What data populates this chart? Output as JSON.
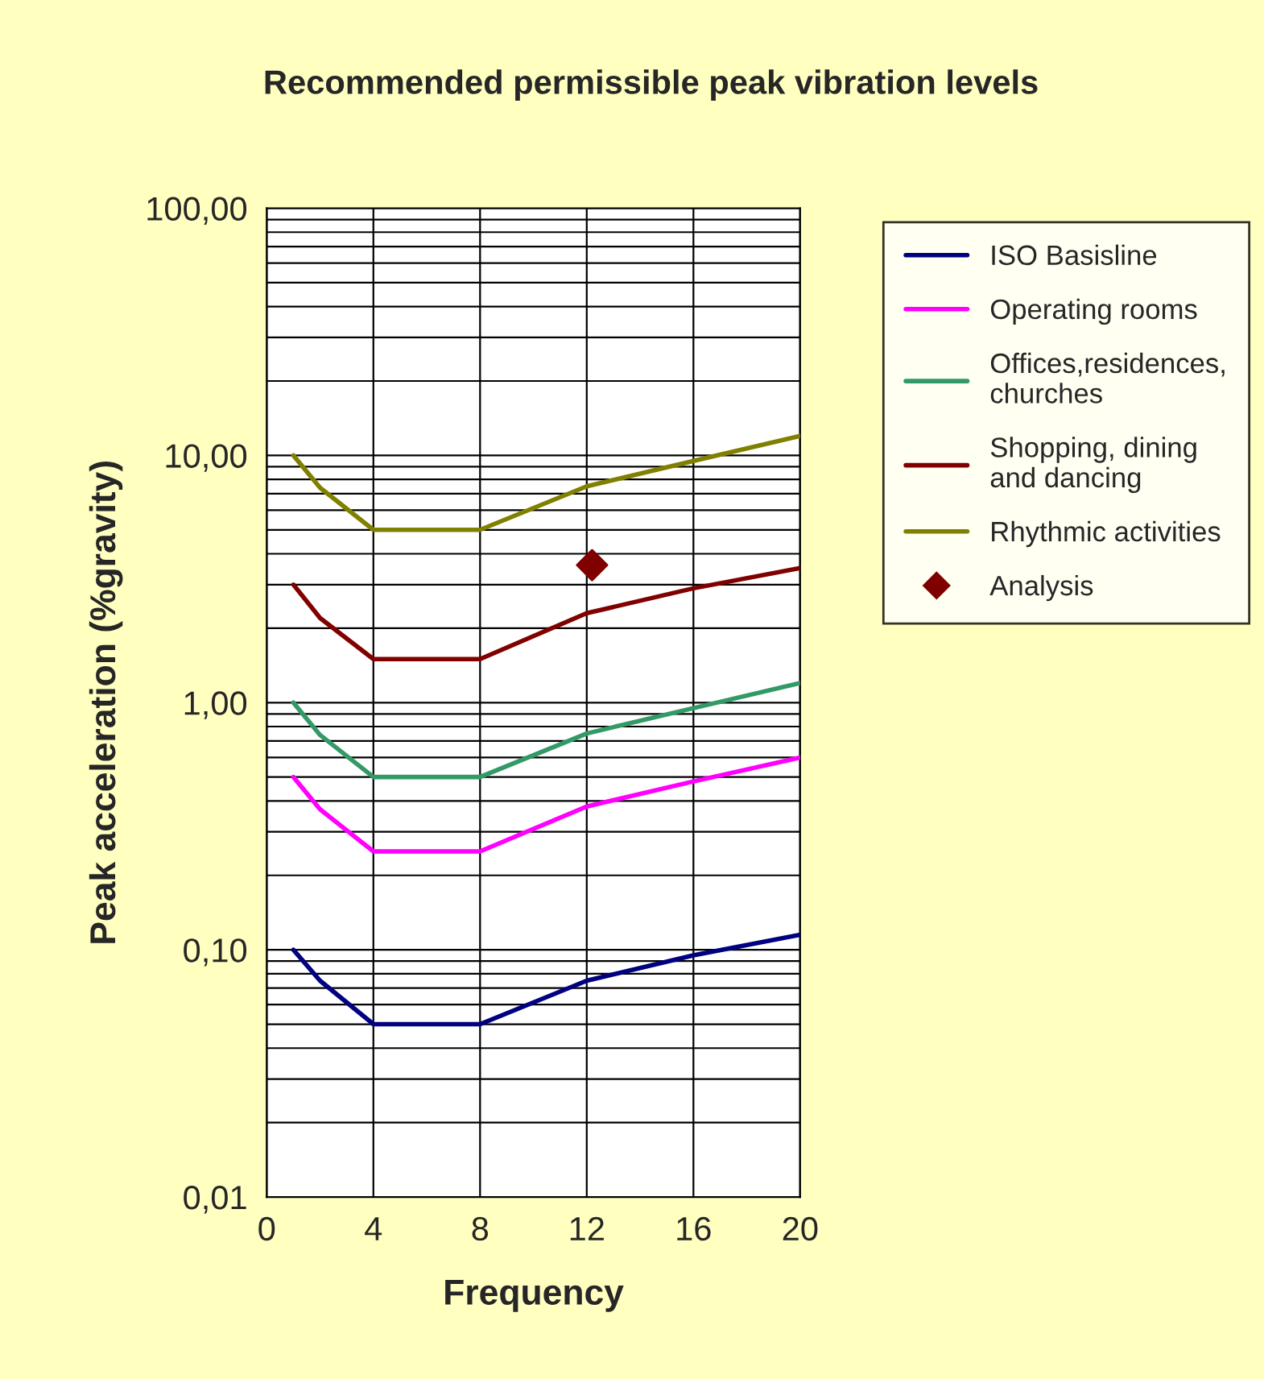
{
  "chart_data": {
    "type": "line",
    "title": "Recommended permissible peak vibration levels",
    "xlabel": "Frequency",
    "ylabel": "Peak acceleration (%gravity)",
    "log": "y",
    "grid": true,
    "legend": "right",
    "marker": "none",
    "line_style": "solid",
    "xlim": [
      0,
      20
    ],
    "xticks": [
      0,
      4,
      8,
      12,
      16,
      20
    ],
    "ylim": [
      0.01,
      100
    ],
    "yticks": [
      {
        "value": 0.01,
        "label": "0,01"
      },
      {
        "value": 0.1,
        "label": "0,10"
      },
      {
        "value": 1,
        "label": "1,00"
      },
      {
        "value": 10,
        "label": "10,00"
      },
      {
        "value": 100,
        "label": "100,00"
      }
    ],
    "series": [
      {
        "name": "ISO Basisline",
        "color": "#000080",
        "x": [
          1,
          2,
          4,
          8,
          12,
          16,
          20
        ],
        "values": [
          0.1,
          0.075,
          0.05,
          0.05,
          0.075,
          0.095,
          0.115
        ]
      },
      {
        "name": "Operating rooms",
        "color": "#ff00ff",
        "x": [
          1,
          2,
          4,
          8,
          12,
          16,
          20
        ],
        "values": [
          0.5,
          0.37,
          0.25,
          0.25,
          0.38,
          0.48,
          0.6
        ]
      },
      {
        "name": "Offices,residences,\nchurches",
        "color": "#339966",
        "x": [
          1,
          2,
          4,
          8,
          12,
          16,
          20
        ],
        "values": [
          1.0,
          0.74,
          0.5,
          0.5,
          0.75,
          0.95,
          1.2
        ]
      },
      {
        "name": "Shopping, dining\nand dancing",
        "color": "#800000",
        "x": [
          1,
          2,
          4,
          8,
          12,
          16,
          20
        ],
        "values": [
          3,
          2.2,
          1.5,
          1.5,
          2.3,
          2.9,
          3.5
        ]
      },
      {
        "name": "Rhythmic activities",
        "color": "#808000",
        "x": [
          1,
          2,
          4,
          8,
          12,
          16,
          20
        ],
        "values": [
          10,
          7.4,
          5,
          5,
          7.5,
          9.5,
          12
        ]
      },
      {
        "name": "Analysis",
        "type": "scatter",
        "marker": "diamond",
        "color": "#800000",
        "x": [
          12.2
        ],
        "values": [
          3.6
        ]
      }
    ]
  }
}
